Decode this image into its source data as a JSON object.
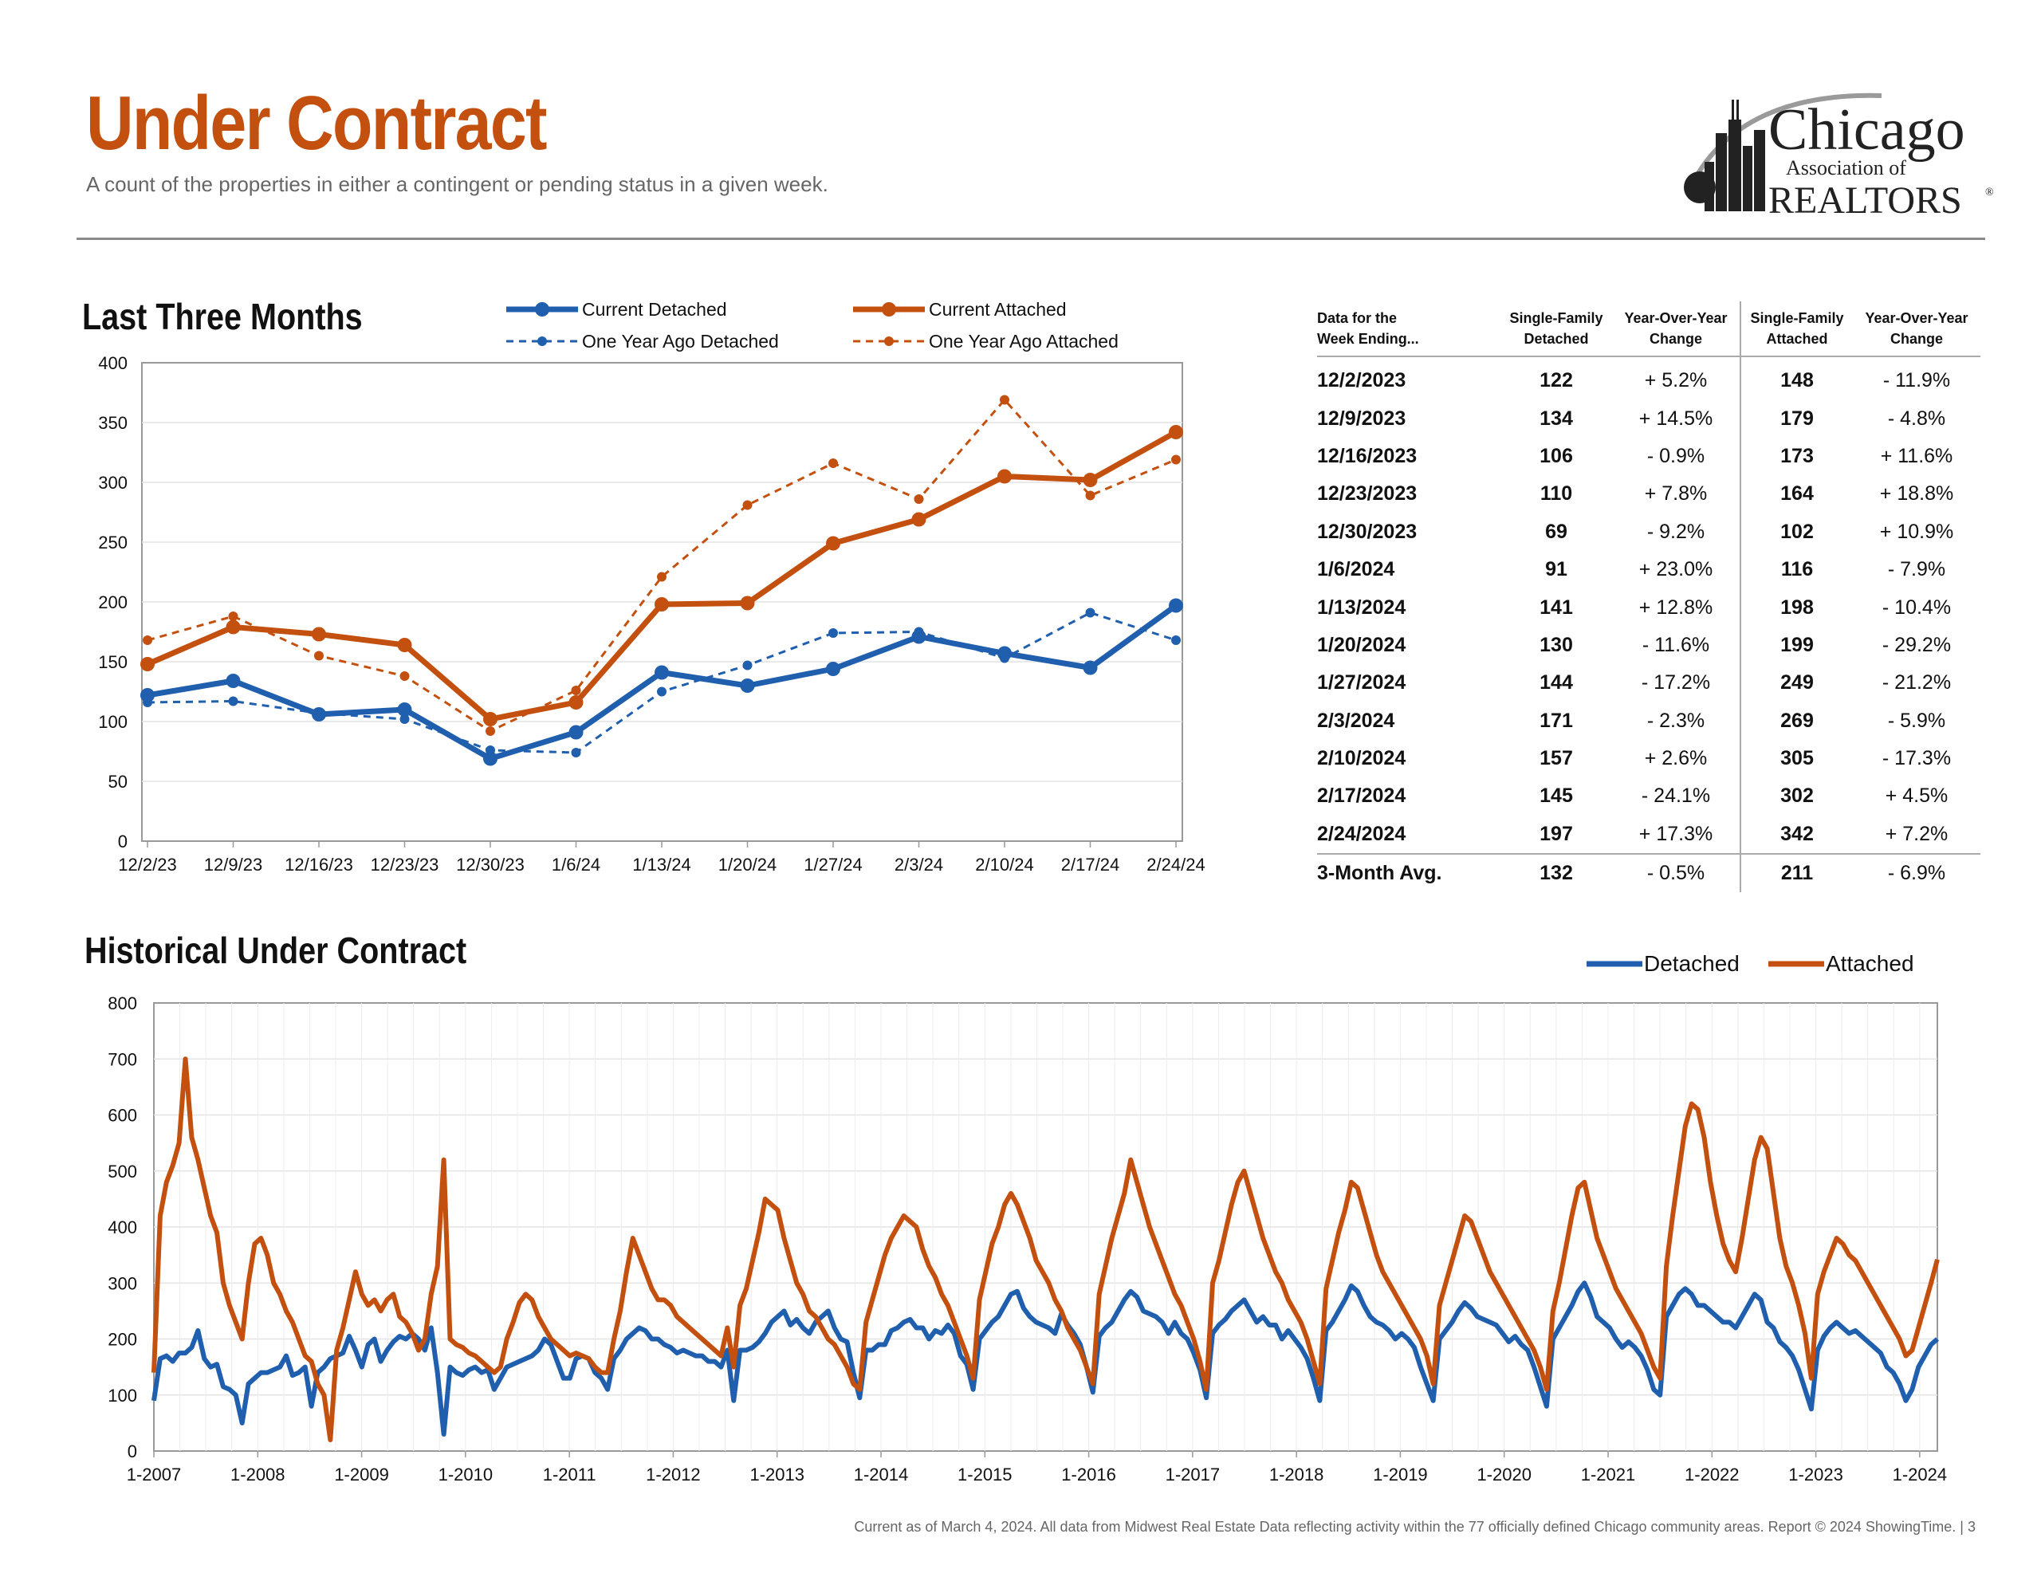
{
  "header": {
    "title": "Under Contract",
    "subtitle": "A count of the properties in either a contingent or pending status in a given week."
  },
  "logo": {
    "line1": "Chicago",
    "line2": "Association of",
    "line3": "REALTORS",
    "mark": "®"
  },
  "colors": {
    "detached": "#1f5fad",
    "attached": "#c4500f",
    "title": "#c4500f"
  },
  "section1": {
    "title": "Last Three Months"
  },
  "section2": {
    "title": "Historical Under Contract"
  },
  "table": {
    "headers": [
      "Data for the\nWeek Ending...",
      "Single-Family\nDetached",
      "Year-Over-Year\nChange",
      "Single-Family\nAttached",
      "Year-Over-Year\nChange"
    ],
    "rows": [
      [
        "12/2/2023",
        "122",
        "+ 5.2%",
        "148",
        "- 11.9%"
      ],
      [
        "12/9/2023",
        "134",
        "+ 14.5%",
        "179",
        "- 4.8%"
      ],
      [
        "12/16/2023",
        "106",
        "- 0.9%",
        "173",
        "+ 11.6%"
      ],
      [
        "12/23/2023",
        "110",
        "+ 7.8%",
        "164",
        "+ 18.8%"
      ],
      [
        "12/30/2023",
        "69",
        "- 9.2%",
        "102",
        "+ 10.9%"
      ],
      [
        "1/6/2024",
        "91",
        "+ 23.0%",
        "116",
        "- 7.9%"
      ],
      [
        "1/13/2024",
        "141",
        "+ 12.8%",
        "198",
        "- 10.4%"
      ],
      [
        "1/20/2024",
        "130",
        "- 11.6%",
        "199",
        "- 29.2%"
      ],
      [
        "1/27/2024",
        "144",
        "- 17.2%",
        "249",
        "- 21.2%"
      ],
      [
        "2/3/2024",
        "171",
        "- 2.3%",
        "269",
        "- 5.9%"
      ],
      [
        "2/10/2024",
        "157",
        "+ 2.6%",
        "305",
        "- 17.3%"
      ],
      [
        "2/17/2024",
        "145",
        "- 24.1%",
        "302",
        "+ 4.5%"
      ],
      [
        "2/24/2024",
        "197",
        "+ 17.3%",
        "342",
        "+ 7.2%"
      ]
    ],
    "average": [
      "3-Month Avg.",
      "132",
      "- 0.5%",
      "211",
      "- 6.9%"
    ]
  },
  "footer": "Current as of March 4, 2024. All data from Midwest Real Estate Data reflecting activity within the 77 officially defined Chicago community areas. Report © 2024 ShowingTime. | 3",
  "chart_data": [
    {
      "type": "line",
      "categories": [
        "12/2/23",
        "12/9/23",
        "12/16/23",
        "12/23/23",
        "12/30/23",
        "1/6/24",
        "1/13/24",
        "1/20/24",
        "1/27/24",
        "2/3/24",
        "2/10/24",
        "2/17/24",
        "2/24/24"
      ],
      "ylim": [
        0,
        400
      ],
      "yticks": [
        0,
        50,
        100,
        150,
        200,
        250,
        300,
        350,
        400
      ],
      "legend_position": "top",
      "grid": true,
      "series": [
        {
          "name": "Current Detached",
          "color": "#1f5fad",
          "style": "solid",
          "values": [
            122,
            134,
            106,
            110,
            69,
            91,
            141,
            130,
            144,
            171,
            157,
            145,
            197
          ]
        },
        {
          "name": "One Year Ago Detached",
          "color": "#1f5fad",
          "style": "dashed",
          "values": [
            116,
            117,
            107,
            102,
            76,
            74,
            125,
            147,
            174,
            175,
            153,
            191,
            168
          ]
        },
        {
          "name": "Current Attached",
          "color": "#c4500f",
          "style": "solid",
          "values": [
            148,
            179,
            173,
            164,
            102,
            116,
            198,
            199,
            249,
            269,
            305,
            302,
            342
          ]
        },
        {
          "name": "One Year Ago Attached",
          "color": "#c4500f",
          "style": "dashed",
          "values": [
            168,
            188,
            155,
            138,
            92,
            126,
            221,
            281,
            316,
            286,
            369,
            289,
            319
          ]
        }
      ]
    },
    {
      "type": "line",
      "x_start": 2007,
      "x_end": 2024.17,
      "xticks": [
        "1-2007",
        "1-2008",
        "1-2009",
        "1-2010",
        "1-2011",
        "1-2012",
        "1-2013",
        "1-2014",
        "1-2015",
        "1-2016",
        "1-2017",
        "1-2018",
        "1-2019",
        "1-2020",
        "1-2021",
        "1-2022",
        "1-2023",
        "1-2024"
      ],
      "ylim": [
        0,
        800
      ],
      "yticks": [
        0,
        100,
        200,
        300,
        400,
        500,
        600,
        700,
        800
      ],
      "legend_position": "top-right",
      "grid": true,
      "series": [
        {
          "name": "Detached",
          "color": "#1f5fad",
          "values": [
            90,
            165,
            170,
            160,
            175,
            175,
            185,
            215,
            165,
            150,
            155,
            115,
            110,
            100,
            50,
            120,
            130,
            140,
            140,
            145,
            150,
            170,
            135,
            140,
            150,
            80,
            140,
            150,
            165,
            170,
            175,
            205,
            180,
            150,
            190,
            200,
            160,
            180,
            195,
            205,
            200,
            210,
            200,
            180,
            220,
            140,
            30,
            150,
            140,
            135,
            145,
            150,
            140,
            145,
            110,
            130,
            150,
            155,
            160,
            165,
            170,
            180,
            200,
            190,
            160,
            130,
            130,
            165,
            170,
            165,
            140,
            130,
            110,
            165,
            180,
            200,
            210,
            220,
            215,
            200,
            200,
            190,
            185,
            175,
            180,
            175,
            170,
            170,
            160,
            160,
            150,
            180,
            90,
            180,
            180,
            185,
            195,
            210,
            230,
            240,
            250,
            225,
            235,
            220,
            210,
            230,
            240,
            250,
            220,
            200,
            195,
            140,
            95,
            180,
            180,
            190,
            190,
            215,
            220,
            230,
            235,
            220,
            220,
            200,
            215,
            210,
            225,
            210,
            170,
            155,
            110,
            200,
            215,
            230,
            240,
            260,
            280,
            285,
            255,
            240,
            230,
            225,
            220,
            210,
            245,
            225,
            210,
            190,
            150,
            105,
            205,
            220,
            230,
            250,
            270,
            285,
            275,
            250,
            245,
            240,
            230,
            210,
            230,
            210,
            200,
            175,
            145,
            95,
            210,
            225,
            235,
            250,
            260,
            270,
            250,
            230,
            240,
            225,
            225,
            200,
            215,
            200,
            185,
            165,
            130,
            90,
            215,
            230,
            250,
            270,
            295,
            285,
            260,
            240,
            230,
            225,
            215,
            200,
            210,
            200,
            185,
            150,
            120,
            90,
            200,
            215,
            230,
            250,
            265,
            255,
            240,
            235,
            230,
            225,
            210,
            195,
            205,
            190,
            180,
            150,
            115,
            80,
            200,
            220,
            240,
            260,
            285,
            300,
            275,
            240,
            230,
            220,
            200,
            185,
            195,
            185,
            170,
            145,
            110,
            100,
            240,
            260,
            280,
            290,
            280,
            260,
            260,
            250,
            240,
            230,
            230,
            220,
            240,
            260,
            280,
            270,
            230,
            220,
            195,
            185,
            170,
            145,
            110,
            75,
            180,
            205,
            220,
            230,
            220,
            210,
            215,
            205,
            195,
            185,
            175,
            150,
            140,
            120,
            90,
            110,
            150,
            170,
            190,
            200
          ]
        },
        {
          "name": "Attached",
          "color": "#c4500f",
          "values": [
            140,
            420,
            480,
            510,
            550,
            700,
            560,
            520,
            470,
            420,
            390,
            300,
            260,
            230,
            200,
            300,
            370,
            380,
            350,
            300,
            280,
            250,
            230,
            200,
            170,
            160,
            120,
            100,
            20,
            180,
            220,
            270,
            320,
            280,
            260,
            270,
            250,
            270,
            280,
            240,
            230,
            210,
            180,
            200,
            280,
            330,
            520,
            200,
            190,
            185,
            175,
            170,
            160,
            150,
            140,
            150,
            200,
            230,
            265,
            280,
            270,
            240,
            220,
            200,
            190,
            180,
            170,
            175,
            170,
            165,
            150,
            140,
            140,
            200,
            250,
            320,
            380,
            350,
            320,
            290,
            270,
            270,
            260,
            240,
            230,
            220,
            210,
            200,
            190,
            180,
            170,
            220,
            150,
            260,
            290,
            340,
            390,
            450,
            440,
            430,
            380,
            340,
            300,
            280,
            250,
            240,
            220,
            200,
            190,
            170,
            150,
            120,
            110,
            230,
            270,
            310,
            350,
            380,
            400,
            420,
            410,
            400,
            360,
            330,
            310,
            280,
            260,
            230,
            200,
            170,
            130,
            270,
            320,
            370,
            400,
            440,
            460,
            440,
            410,
            380,
            340,
            320,
            300,
            270,
            250,
            220,
            200,
            180,
            150,
            120,
            280,
            330,
            380,
            420,
            460,
            520,
            480,
            440,
            400,
            370,
            340,
            310,
            280,
            260,
            230,
            200,
            160,
            110,
            300,
            340,
            390,
            440,
            480,
            500,
            460,
            420,
            380,
            350,
            320,
            300,
            270,
            250,
            230,
            200,
            160,
            120,
            290,
            340,
            390,
            430,
            480,
            470,
            430,
            390,
            350,
            320,
            300,
            280,
            260,
            240,
            220,
            200,
            170,
            120,
            260,
            300,
            340,
            380,
            420,
            410,
            380,
            350,
            320,
            300,
            280,
            260,
            240,
            220,
            200,
            180,
            150,
            110,
            250,
            300,
            360,
            420,
            470,
            480,
            430,
            380,
            350,
            320,
            290,
            270,
            250,
            230,
            210,
            180,
            150,
            130,
            330,
            420,
            500,
            580,
            620,
            610,
            560,
            480,
            420,
            370,
            340,
            320,
            380,
            450,
            520,
            560,
            540,
            460,
            380,
            330,
            300,
            260,
            210,
            130,
            280,
            320,
            350,
            380,
            370,
            350,
            340,
            320,
            300,
            280,
            260,
            240,
            220,
            200,
            170,
            180,
            220,
            260,
            300,
            342
          ]
        }
      ]
    }
  ]
}
